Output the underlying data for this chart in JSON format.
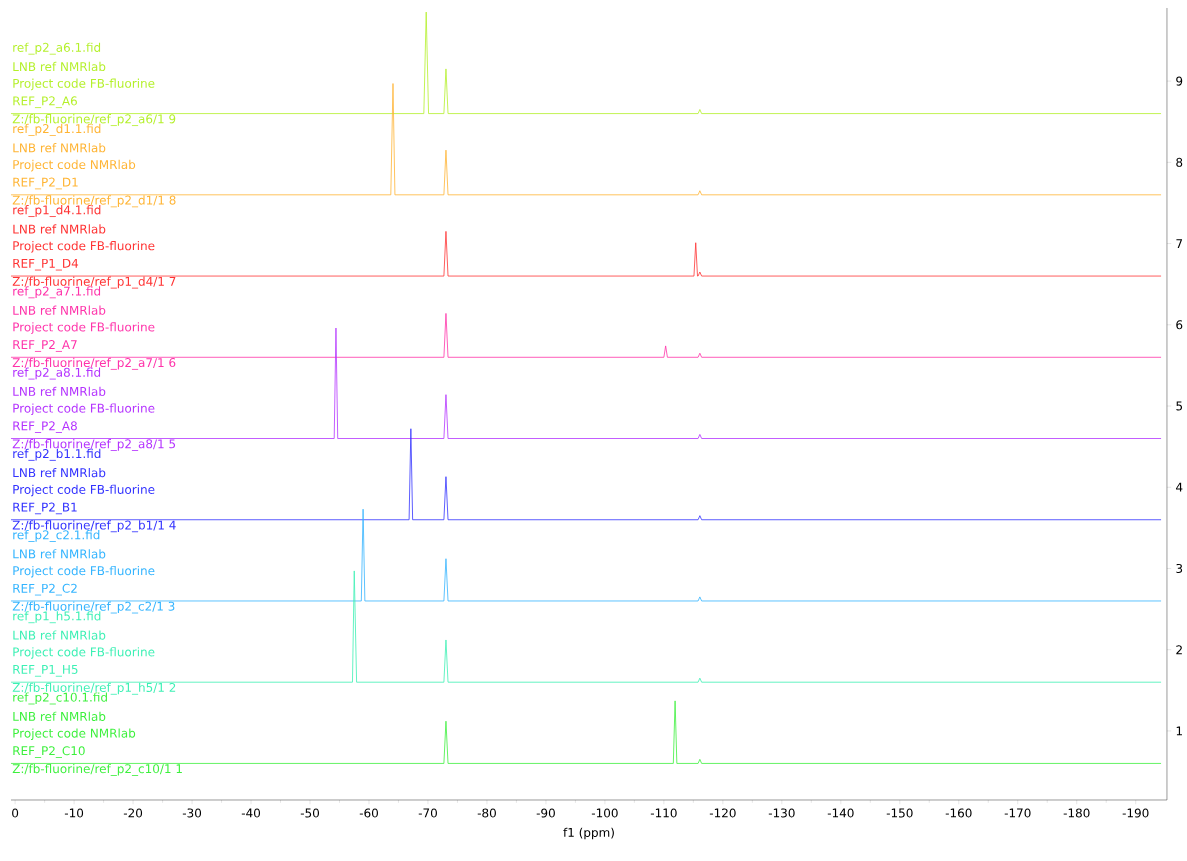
{
  "chart_data": {
    "type": "line",
    "xlabel": "f1 (ppm)",
    "xlim": [
      0.7,
      -195.3
    ],
    "xticks": [
      0,
      -10,
      -20,
      -30,
      -40,
      -50,
      -60,
      -70,
      -80,
      -90,
      -100,
      -110,
      -120,
      -130,
      -140,
      -150,
      -160,
      -170,
      -180,
      -190
    ],
    "ylim": [
      0.15,
      9.9
    ],
    "yticks": [
      1,
      2,
      3,
      4,
      5,
      6,
      7,
      8,
      9
    ],
    "series": [
      {
        "name": "ref_p2_a6.1.fid",
        "color": "#b4f02a",
        "x": [
          0.7,
          -69.3,
          -69.7,
          -70.1,
          -72.7,
          -73.05,
          -73.4,
          -115.8,
          -116.1,
          -116.4,
          -194.3
        ],
        "values": [
          8.6,
          8.6,
          9.85,
          8.6,
          8.6,
          9.15,
          8.6,
          8.6,
          8.65,
          8.6,
          8.6
        ]
      },
      {
        "name": "ref_p2_d1.1.fid",
        "color": "#ffb433",
        "x": [
          0.7,
          -63.7,
          -64.07,
          -64.4,
          -72.7,
          -73.05,
          -73.4,
          -115.8,
          -116.1,
          -116.4,
          -194.3
        ],
        "values": [
          7.6,
          7.6,
          8.97,
          7.6,
          7.6,
          8.15,
          7.6,
          7.6,
          7.65,
          7.6,
          7.6
        ]
      },
      {
        "name": "ref_p1_d4.1.fid",
        "color": "#ff3333",
        "x": [
          0.7,
          -72.7,
          -73.05,
          -73.4,
          -115.1,
          -115.4,
          -115.7,
          -115.8,
          -116.1,
          -116.4,
          -194.3
        ],
        "values": [
          6.6,
          6.6,
          7.15,
          6.6,
          6.6,
          7.01,
          6.6,
          6.6,
          6.65,
          6.6,
          6.6
        ]
      },
      {
        "name": "ref_p2_a7.1.fid",
        "color": "#ff33aa",
        "x": [
          0.7,
          -72.7,
          -73.05,
          -73.4,
          -110.0,
          -110.3,
          -110.6,
          -115.8,
          -116.1,
          -116.4,
          -194.3
        ],
        "values": [
          5.6,
          5.6,
          6.14,
          5.6,
          5.6,
          5.74,
          5.6,
          5.6,
          5.65,
          5.6,
          5.6
        ]
      },
      {
        "name": "ref_p2_a8.1.fid",
        "color": "#b433ff",
        "x": [
          0.7,
          -54.1,
          -54.4,
          -54.7,
          -72.7,
          -73.05,
          -73.4,
          -115.8,
          -116.1,
          -116.4,
          -194.3
        ],
        "values": [
          4.6,
          4.6,
          5.96,
          4.6,
          4.6,
          5.14,
          4.6,
          4.6,
          4.65,
          4.6,
          4.6
        ]
      },
      {
        "name": "ref_p2_b1.1.fid",
        "color": "#3333ff",
        "x": [
          0.7,
          -66.8,
          -67.1,
          -67.4,
          -72.7,
          -73.05,
          -73.4,
          -115.8,
          -116.1,
          -116.4,
          -194.3
        ],
        "values": [
          3.6,
          3.6,
          4.72,
          3.6,
          3.6,
          4.13,
          3.6,
          3.6,
          3.65,
          3.6,
          3.6
        ]
      },
      {
        "name": "ref_p2_c2.1.fid",
        "color": "#33b4ff",
        "x": [
          0.7,
          -58.7,
          -59.0,
          -59.3,
          -72.7,
          -73.05,
          -73.4,
          -115.8,
          -116.1,
          -116.4,
          -194.3
        ],
        "values": [
          2.6,
          2.6,
          3.73,
          2.6,
          2.6,
          3.12,
          2.6,
          2.6,
          2.65,
          2.6,
          2.6
        ]
      },
      {
        "name": "ref_p1_h5.1.fid",
        "color": "#3cf0b4",
        "x": [
          0.7,
          -57.2,
          -57.5,
          -57.9,
          -72.7,
          -73.05,
          -73.4,
          -115.8,
          -116.1,
          -116.4,
          -194.3
        ],
        "values": [
          1.6,
          1.6,
          2.97,
          1.6,
          1.6,
          2.12,
          1.6,
          1.6,
          1.65,
          1.6,
          1.6
        ]
      },
      {
        "name": "ref_p2_c10.1.fid",
        "color": "#3cf03c",
        "x": [
          0.7,
          -72.7,
          -73.05,
          -73.4,
          -111.6,
          -111.9,
          -112.2,
          -115.8,
          -116.1,
          -116.4,
          -194.3
        ],
        "values": [
          0.6,
          0.6,
          1.12,
          0.6,
          0.6,
          1.37,
          0.6,
          0.6,
          0.65,
          0.6,
          0.6
        ]
      }
    ],
    "annotations": [
      "LNB ref NMRlab",
      "Project code FB-fluorine",
      "REF_P2_A6",
      "Z:/fb-fluorine/ref_p2_a6/1 9",
      "LNB ref NMRlab",
      "Project code NMRlab",
      "REF_P2_D1",
      "Z:/fb-fluorine/ref_p2_d1/1 8",
      "LNB ref NMRlab",
      "Project code FB-fluorine",
      "REF_P1_D4",
      "Z:/fb-fluorine/ref_p1_d4/1 7",
      "LNB ref NMRlab",
      "Project code FB-fluorine",
      "REF_P2_A7",
      "Z:/fb-fluorine/ref_p2_a7/1 6",
      "LNB ref NMRlab",
      "Project code FB-fluorine",
      "REF_P2_A8",
      "Z:/fb-fluorine/ref_p2_a8/1 5",
      "LNB ref NMRlab",
      "Project code FB-fluorine",
      "REF_P2_B1",
      "Z:/fb-fluorine/ref_p2_b1/1 4",
      "LNB ref NMRlab",
      "Project code FB-fluorine",
      "REF_P2_C2",
      "Z:/fb-fluorine/ref_p2_c2/1 3",
      "LNB ref NMRlab",
      "Project code FB-fluorine",
      "REF_P1_H5",
      "Z:/fb-fluorine/ref_p1_h5/1 2",
      "LNB ref NMRlab",
      "Project code NMRlab",
      "REF_P2_C10",
      "Z:/fb-fluorine/ref_p2_c10/1 1"
    ]
  }
}
